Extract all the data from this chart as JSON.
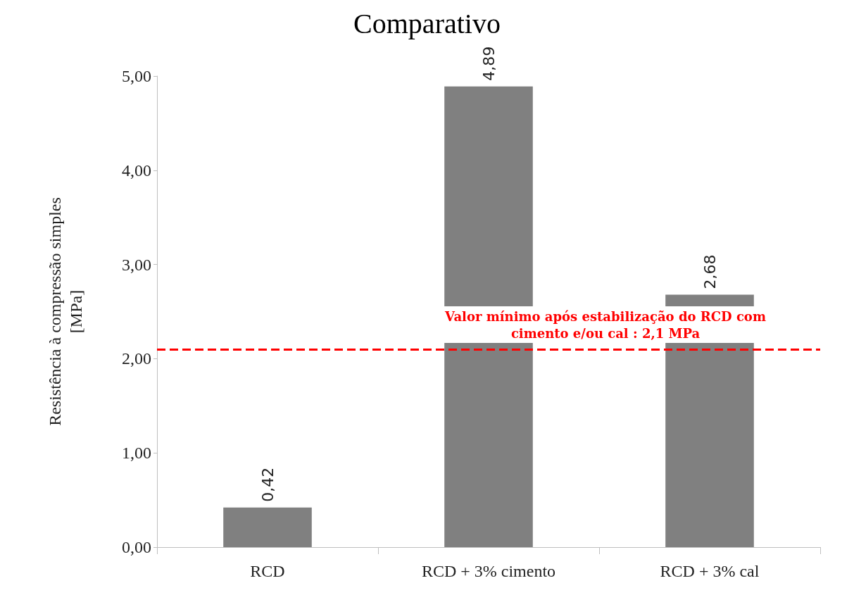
{
  "chart_data": {
    "type": "bar",
    "title": "Comparativo",
    "ylabel": "Resistência à compressão simples\n[MPa]",
    "categories": [
      "RCD",
      "RCD + 3% cimento",
      "RCD + 3% cal"
    ],
    "values": [
      0.42,
      4.89,
      2.68
    ],
    "color": "#808080",
    "value_labels": [
      "0,42",
      "4,89",
      "2,68"
    ],
    "ylim": [
      0,
      5
    ],
    "yticks": [
      {
        "value": 0,
        "label": "0,00"
      },
      {
        "value": 1,
        "label": "1,00"
      },
      {
        "value": 2,
        "label": "2,00"
      },
      {
        "value": 3,
        "label": "3,00"
      },
      {
        "value": 4,
        "label": "4,00"
      },
      {
        "value": 5,
        "label": "5,00"
      }
    ],
    "ref_lines": [
      {
        "axis": "y",
        "value": 2.1,
        "label": "Valor mínimo após estabilização do RCD com\ncimento e/ou cal : 2,1 MPa",
        "color": "#ff0000",
        "line_style": "dashed"
      }
    ],
    "grid": false
  }
}
